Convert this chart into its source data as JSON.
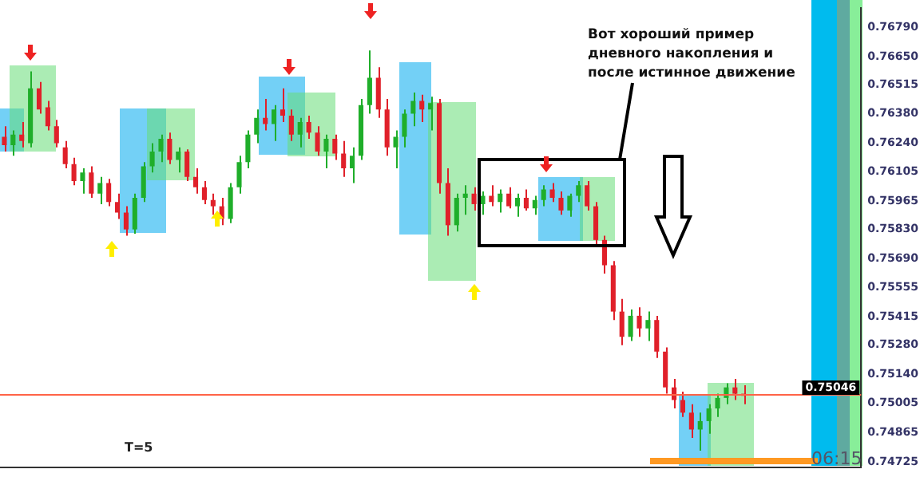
{
  "chart_data": {
    "type": "candlestick",
    "categories": [
      null,
      null,
      null,
      null,
      null,
      null,
      null,
      null,
      null,
      null,
      null,
      null,
      null,
      null,
      null,
      null,
      null,
      null,
      null,
      null,
      null,
      null,
      null,
      null,
      null,
      null,
      null,
      null,
      null,
      null,
      null,
      null,
      null,
      null,
      null,
      null,
      null,
      null,
      null,
      null,
      null,
      null,
      null,
      null,
      null,
      null,
      null,
      null,
      null,
      null,
      null,
      null,
      null,
      null,
      null,
      null,
      null,
      null,
      null,
      null,
      null,
      null,
      null,
      null,
      null,
      null,
      null,
      null,
      null,
      null,
      null,
      null,
      null,
      null,
      null,
      null,
      null,
      null,
      null,
      null,
      null,
      null,
      null,
      null,
      null,
      null,
      null,
      null,
      null,
      null,
      null,
      null,
      null,
      null,
      null,
      null,
      null,
      null,
      null
    ],
    "ohlc": [
      [
        0.7627,
        0.7632,
        0.762,
        0.7623
      ],
      [
        0.7623,
        0.763,
        0.7618,
        0.7628
      ],
      [
        0.7628,
        0.7634,
        0.7622,
        0.7625
      ],
      [
        0.7624,
        0.7658,
        0.7622,
        0.765
      ],
      [
        0.765,
        0.7653,
        0.7638,
        0.764
      ],
      [
        0.7641,
        0.7644,
        0.763,
        0.7632
      ],
      [
        0.7632,
        0.7635,
        0.7622,
        0.7624
      ],
      [
        0.7622,
        0.7625,
        0.7612,
        0.7614
      ],
      [
        0.7614,
        0.7617,
        0.7604,
        0.7606
      ],
      [
        0.7606,
        0.7612,
        0.76,
        0.761
      ],
      [
        0.761,
        0.7613,
        0.7598,
        0.76
      ],
      [
        0.76,
        0.7608,
        0.7595,
        0.7605
      ],
      [
        0.7605,
        0.7607,
        0.7594,
        0.7596
      ],
      [
        0.7596,
        0.76,
        0.7588,
        0.7591
      ],
      [
        0.7591,
        0.7594,
        0.758,
        0.7583
      ],
      [
        0.7583,
        0.76,
        0.7581,
        0.7598
      ],
      [
        0.7598,
        0.7615,
        0.7596,
        0.7613
      ],
      [
        0.7613,
        0.7624,
        0.761,
        0.762
      ],
      [
        0.762,
        0.7628,
        0.7615,
        0.7626
      ],
      [
        0.7626,
        0.7629,
        0.7614,
        0.7616
      ],
      [
        0.7616,
        0.7622,
        0.761,
        0.762
      ],
      [
        0.762,
        0.7621,
        0.7606,
        0.7608
      ],
      [
        0.7608,
        0.7612,
        0.76,
        0.7603
      ],
      [
        0.7603,
        0.7606,
        0.7595,
        0.7597
      ],
      [
        0.7597,
        0.76,
        0.759,
        0.7594
      ],
      [
        0.7594,
        0.7598,
        0.7585,
        0.7588
      ],
      [
        0.7588,
        0.7605,
        0.7586,
        0.7603
      ],
      [
        0.7603,
        0.7618,
        0.76,
        0.7615
      ],
      [
        0.7615,
        0.763,
        0.7612,
        0.7628
      ],
      [
        0.7628,
        0.764,
        0.7624,
        0.7636
      ],
      [
        0.7636,
        0.7645,
        0.763,
        0.7633
      ],
      [
        0.7633,
        0.7642,
        0.7625,
        0.764
      ],
      [
        0.764,
        0.765,
        0.7634,
        0.7637
      ],
      [
        0.7637,
        0.764,
        0.7625,
        0.7628
      ],
      [
        0.7628,
        0.7636,
        0.7622,
        0.7634
      ],
      [
        0.7634,
        0.7637,
        0.7626,
        0.7629
      ],
      [
        0.7629,
        0.7632,
        0.7618,
        0.762
      ],
      [
        0.762,
        0.7628,
        0.7612,
        0.7626
      ],
      [
        0.7626,
        0.7628,
        0.7616,
        0.7619
      ],
      [
        0.7619,
        0.7625,
        0.7608,
        0.7612
      ],
      [
        0.7612,
        0.7622,
        0.7605,
        0.7618
      ],
      [
        0.7618,
        0.7645,
        0.7616,
        0.7642
      ],
      [
        0.7642,
        0.7668,
        0.7638,
        0.7655
      ],
      [
        0.7655,
        0.766,
        0.7636,
        0.764
      ],
      [
        0.764,
        0.7645,
        0.7618,
        0.7622
      ],
      [
        0.7622,
        0.763,
        0.7612,
        0.7627
      ],
      [
        0.7627,
        0.764,
        0.7622,
        0.7638
      ],
      [
        0.7638,
        0.7648,
        0.7632,
        0.7644
      ],
      [
        0.7644,
        0.7647,
        0.7634,
        0.764
      ],
      [
        0.764,
        0.7646,
        0.763,
        0.7643
      ],
      [
        0.7643,
        0.7645,
        0.76,
        0.7605
      ],
      [
        0.7605,
        0.7612,
        0.758,
        0.7585
      ],
      [
        0.7585,
        0.76,
        0.7582,
        0.7598
      ],
      [
        0.7598,
        0.7604,
        0.759,
        0.76
      ],
      [
        0.76,
        0.7603,
        0.7592,
        0.7595
      ],
      [
        0.7595,
        0.7601,
        0.759,
        0.7599
      ],
      [
        0.7599,
        0.7604,
        0.7594,
        0.7596
      ],
      [
        0.7596,
        0.7602,
        0.7591,
        0.76
      ],
      [
        0.76,
        0.7603,
        0.7593,
        0.7594
      ],
      [
        0.7594,
        0.76,
        0.7589,
        0.7598
      ],
      [
        0.7598,
        0.7602,
        0.7592,
        0.7593
      ],
      [
        0.7593,
        0.7599,
        0.759,
        0.7597
      ],
      [
        0.7597,
        0.7604,
        0.7594,
        0.7602
      ],
      [
        0.7602,
        0.7605,
        0.7596,
        0.7598
      ],
      [
        0.7598,
        0.7601,
        0.759,
        0.7592
      ],
      [
        0.7592,
        0.76,
        0.7589,
        0.7599
      ],
      [
        0.7599,
        0.7606,
        0.7596,
        0.7604
      ],
      [
        0.7604,
        0.7606,
        0.7592,
        0.7594
      ],
      [
        0.7594,
        0.7596,
        0.7575,
        0.7578
      ],
      [
        0.7578,
        0.758,
        0.7562,
        0.7566
      ],
      [
        0.7566,
        0.7568,
        0.754,
        0.7544
      ],
      [
        0.7544,
        0.755,
        0.7528,
        0.7532
      ],
      [
        0.7532,
        0.7545,
        0.753,
        0.7542
      ],
      [
        0.7542,
        0.7546,
        0.7532,
        0.7536
      ],
      [
        0.7536,
        0.7544,
        0.753,
        0.754
      ],
      [
        0.754,
        0.7542,
        0.7522,
        0.7525
      ],
      [
        0.7525,
        0.7527,
        0.7505,
        0.7508
      ],
      [
        0.7508,
        0.7512,
        0.7498,
        0.7502
      ],
      [
        0.7502,
        0.7506,
        0.7494,
        0.7496
      ],
      [
        0.7496,
        0.75,
        0.7484,
        0.7488
      ],
      [
        0.7488,
        0.7496,
        0.7478,
        0.7492
      ],
      [
        0.7492,
        0.75,
        0.7486,
        0.7498
      ],
      [
        0.7498,
        0.7505,
        0.7494,
        0.7503
      ],
      [
        0.7503,
        0.751,
        0.75,
        0.7508
      ],
      [
        0.7508,
        0.7512,
        0.7502,
        0.7505
      ],
      [
        0.7505,
        0.7509,
        0.75,
        0.7504
      ],
      null,
      null,
      null,
      null,
      null,
      null,
      null,
      null,
      null,
      null,
      null,
      null,
      null
    ],
    "ylim": [
      0.747,
      0.7688
    ],
    "yticks": [
      0.74725,
      0.74865,
      0.75005,
      {
        "value": 0.7514,
        "label": "0.75140"
      },
      {
        "value": 0.7528,
        "label": "0.75280"
      },
      0.75415,
      0.75555,
      {
        "value": 0.7569,
        "label": "0.75690"
      },
      {
        "value": 0.7583,
        "label": "0.75830"
      },
      0.75965,
      0.76105,
      {
        "value": 0.7624,
        "label": "0.76240"
      },
      {
        "value": 0.7638,
        "label": "0.76380"
      },
      0.76515,
      {
        "value": 0.7665,
        "label": "0.76650"
      },
      {
        "value": 0.7679,
        "label": "0.76790"
      }
    ],
    "tick_labels": "y",
    "grid": false,
    "legend": false,
    "ref_lines": [
      {
        "axis": "y",
        "value": 0.75046,
        "label": "0.75046",
        "color": "#ff6347"
      }
    ],
    "annotations": [
      "Вот хороший пример дневного накопления и после истинное движение",
      "T=5",
      "06:15"
    ]
  }
}
